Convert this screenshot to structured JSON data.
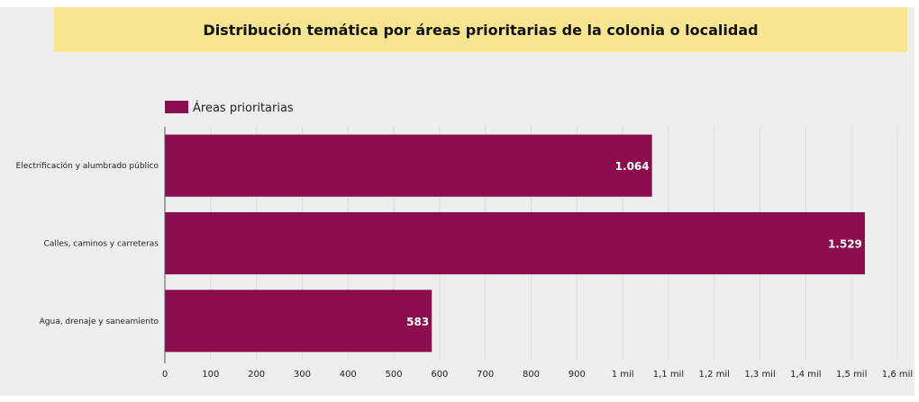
{
  "colors": {
    "bar": "#8b0d4d",
    "panel": "#eeeeee",
    "title_band": "#f7e68f",
    "grid": "#dcdcdc",
    "axis": "#555555",
    "value_label": "#ffffff"
  },
  "chart_data": {
    "type": "bar",
    "orientation": "horizontal",
    "title": "Distribución temática por áreas prioritarias de la colonia o localidad",
    "legend": {
      "position": "top-left",
      "entries": [
        "Áreas prioritarias"
      ]
    },
    "categories": [
      "Electrificación y alumbrado público",
      "Calles, caminos y carreteras",
      "Agua, drenaje y saneamiento"
    ],
    "series": [
      {
        "name": "Áreas prioritarias",
        "values": [
          1064,
          1529,
          583
        ],
        "value_labels": [
          "1.064",
          "1.529",
          "583"
        ]
      }
    ],
    "xlim": [
      0,
      1600
    ],
    "x_ticks": [
      0,
      100,
      200,
      300,
      400,
      500,
      600,
      700,
      800,
      900,
      1000,
      1100,
      1200,
      1300,
      1400,
      1500,
      1600
    ],
    "x_tick_labels": [
      "0",
      "100",
      "200",
      "300",
      "400",
      "500",
      "600",
      "700",
      "800",
      "900",
      "1 mil",
      "1,1 mil",
      "1,2 mil",
      "1,3 mil",
      "1,4 mil",
      "1,5 mil",
      "1,6 mil"
    ],
    "grid": true
  }
}
